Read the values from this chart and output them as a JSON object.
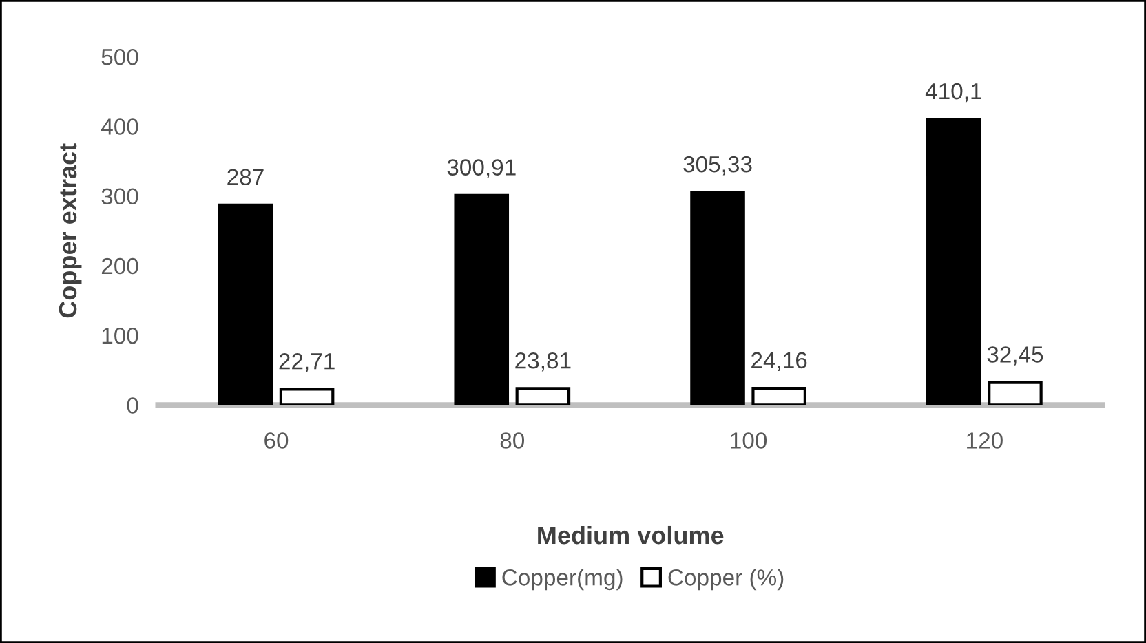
{
  "chart_data": {
    "type": "bar",
    "xlabel": "Medium volume",
    "ylabel": "Copper extract",
    "categories": [
      "60",
      "80",
      "100",
      "120"
    ],
    "series": [
      {
        "name": "Copper(mg)",
        "color": "#000000",
        "values": [
          287,
          300.91,
          305.33,
          410.1
        ],
        "value_labels": [
          "287",
          "300,91",
          "305,33",
          "410,1"
        ]
      },
      {
        "name": "Copper (%)",
        "color": "#ffffff",
        "values": [
          22.71,
          23.81,
          24.16,
          32.45
        ],
        "value_labels": [
          "22,71",
          "23,81",
          "24,16",
          "32,45"
        ]
      }
    ],
    "ylim": [
      0,
      500
    ],
    "yticks": [
      0,
      100,
      200,
      300,
      400,
      500
    ],
    "grid": false,
    "legend": "bottom"
  }
}
